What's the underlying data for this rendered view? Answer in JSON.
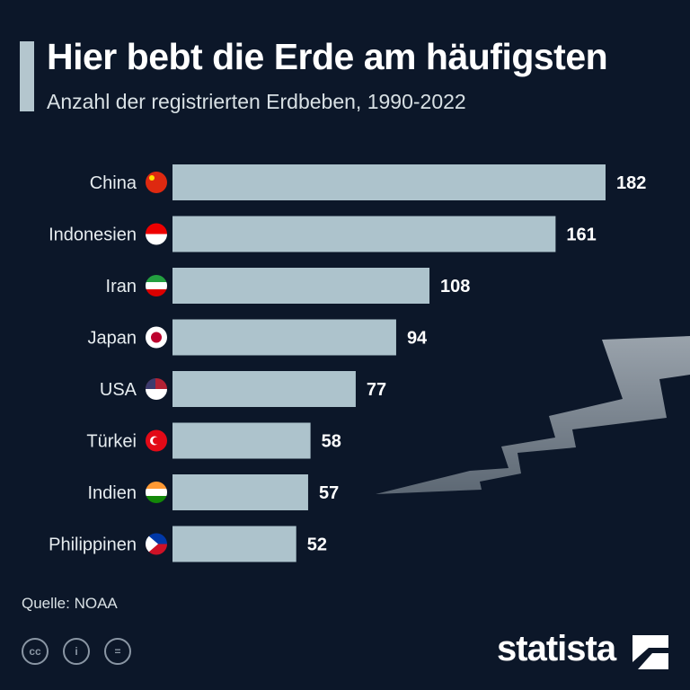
{
  "title": "Hier bebt die Erde am häufigsten",
  "subtitle": "Anzahl der registrierten Erdbeben, 1990-2022",
  "source": "Quelle: NOAA",
  "brand": "statista",
  "license_icons": [
    "cc-icon",
    "attribution-icon",
    "no-derivatives-icon"
  ],
  "colors": {
    "background": "#0c1729",
    "bar": "#adc3cc",
    "text": "#ffffff"
  },
  "chart_data": {
    "type": "bar",
    "orientation": "horizontal",
    "title": "Hier bebt die Erde am häufigsten",
    "subtitle": "Anzahl der registrierten Erdbeben, 1990-2022",
    "categories": [
      "China",
      "Indonesien",
      "Iran",
      "Japan",
      "USA",
      "Türkei",
      "Indien",
      "Philippinen"
    ],
    "values": [
      182,
      161,
      108,
      94,
      77,
      58,
      57,
      52
    ],
    "xlabel": "",
    "ylabel": "",
    "xlim": [
      0,
      182
    ],
    "grid": false
  }
}
